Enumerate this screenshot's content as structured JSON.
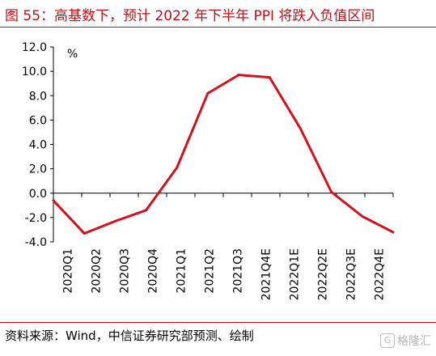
{
  "header": {
    "title": "图 55：高基数下，预计 2022 年下半年 PPI 将跌入负值区间"
  },
  "footer": {
    "source": "资料来源：Wind，中信证券研究部预测、绘制",
    "watermark": "格隆汇",
    "watermark_logo": "G"
  },
  "colors": {
    "accent": "#c0101a",
    "line": "#d4111f",
    "axis": "#000000"
  },
  "chart_data": {
    "type": "line",
    "title": "",
    "xlabel": "",
    "ylabel": "%",
    "categories": [
      "2020Q1",
      "2020Q2",
      "2020Q3",
      "2020Q4",
      "2021Q1",
      "2021Q2",
      "2021Q3",
      "2021Q4E",
      "2022Q1E",
      "2022Q2E",
      "2022Q3E",
      "2022Q4E"
    ],
    "series": [
      {
        "values": [
          -0.6,
          -3.3,
          -2.3,
          -1.4,
          2.1,
          8.2,
          9.7,
          9.5,
          5.3,
          0.1,
          -1.9,
          -3.2
        ]
      }
    ],
    "ylim": [
      -4.0,
      12.0
    ],
    "yticks": [
      12.0,
      10.0,
      8.0,
      6.0,
      4.0,
      2.0,
      0.0,
      -2.0,
      -4.0
    ],
    "ytick_labels": [
      "12.0",
      "10.0",
      "8.0",
      "6.0",
      "4.0",
      "2.0",
      "0.0",
      "-2.0",
      "-4.0"
    ],
    "grid": false,
    "legend": "none"
  }
}
